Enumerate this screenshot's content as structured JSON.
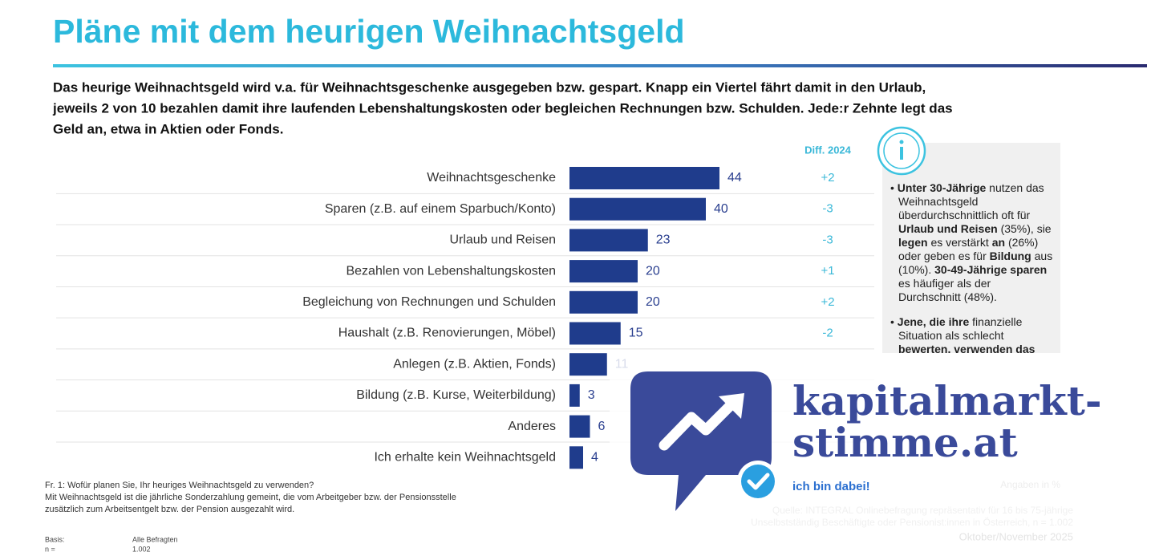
{
  "chart_data": {
    "type": "bar",
    "title": "Pläne mit dem heurigen Weihnachtsgeld",
    "subtitle": [
      "Das heurige Weihnachtsgeld wird v.a. für Weihnachtsgeschenke ausgegeben bzw. gespart. Knapp ein Viertel fährt damit in den Urlaub,",
      "jeweils 2 von 10 bezahlen damit ihre laufenden Lebenshaltungskosten oder begleichen Rechnungen bzw. Schulden. Jede:r Zehnte legt das",
      "Geld an, etwa in Aktien oder Fonds."
    ],
    "categories": [
      "Weihnachtsgeschenke",
      "Sparen (z.B. auf einem Sparbuch/Konto)",
      "Urlaub und Reisen",
      "Bezahlen von Lebenshaltungskosten",
      "Begleichung von Rechnungen und Schulden",
      "Haushalt (z.B. Renovierungen, Möbel)",
      "Anlegen (z.B. Aktien, Fonds)",
      "Bildung (z.B. Kurse, Weiterbildung)",
      "Anderes",
      "Ich erhalte kein Weihnachtsgeld"
    ],
    "values": [
      44,
      40,
      23,
      20,
      20,
      15,
      11,
      3,
      6,
      4
    ],
    "color": "#1f3c8c",
    "diff": {
      "header": "Diff. 2024",
      "values": [
        2,
        -3,
        -3,
        1,
        2,
        -2,
        null,
        null,
        null,
        null
      ],
      "value_labels": [
        "+2",
        "-3",
        "-3",
        "+1",
        "+2",
        "-2",
        null,
        null,
        null,
        null
      ]
    },
    "info_box": {
      "bullets": [
        [
          "Unter 30-Jährige",
          " nutzen das Weihnachtsgeld überdurchschnittlich oft für ",
          "Urlaub und Reisen",
          " (35%), sie ",
          "legen",
          " es verstärkt ",
          "an",
          " (26%) oder geben es für ",
          "Bildung",
          " aus (10%). ",
          "30-49-Jährige sparen",
          " es häufiger als der Durchschnitt (48%)."
        ],
        [
          "Jene, die ihre ",
          "finanzielle Situation als schlecht",
          " bewerten, verwenden das Weihnachtsgeld verstärkt"
        ]
      ]
    },
    "footnotes": [
      "Fr. 1: Wofür planen Sie, Ihr heuriges Weihnachtsgeld zu verwenden?",
      "Mit Weihnachtsgeld ist die jährliche Sonderzahlung gemeint, die vom Arbeitgeber bzw. der Pensionsstelle",
      "zusätzlich zum Arbeitsentgelt bzw. der Pension ausgezahlt wird."
    ],
    "basis": [
      [
        "Basis:",
        "Alle Befragten"
      ],
      [
        "n =",
        "1.002"
      ]
    ],
    "unit_note": "Angaben in %",
    "source": [
      "Quelle: INTEGRAL Onlinebefragung repräsentativ für 16 bis 75-jährige",
      "Unselbstständig Beschäftigte oder Pensionist:innen in Österreich, n = 1.002"
    ],
    "date": "Oktober/November 2025"
  },
  "overlay": {
    "logo": [
      "kapitalmarkt-",
      "stimme.at"
    ],
    "tagline": "ich bin dabei!"
  }
}
